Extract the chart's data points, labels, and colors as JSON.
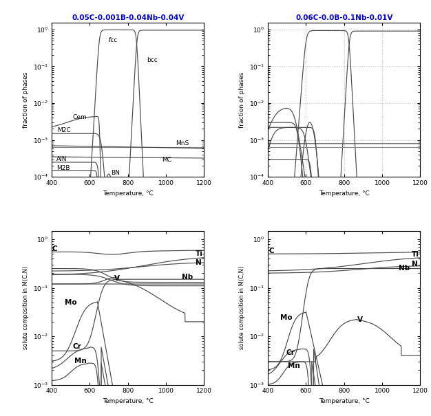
{
  "title1": "0.05C-0.001B-0.04Nb-0.04V",
  "title2": "0.06C-0.0B-0.1Nb-0.01V",
  "title_color": "#0000cc",
  "xlabel": "Temperature, °C",
  "ylabel_top": "fraction of phases",
  "ylabel_bot": "solute composition in M(C,N)",
  "xmin": 400,
  "xmax": 1200,
  "line_color": "#4a4a4a",
  "hline_color": "#888888",
  "grid_color": "#bbbbbb"
}
